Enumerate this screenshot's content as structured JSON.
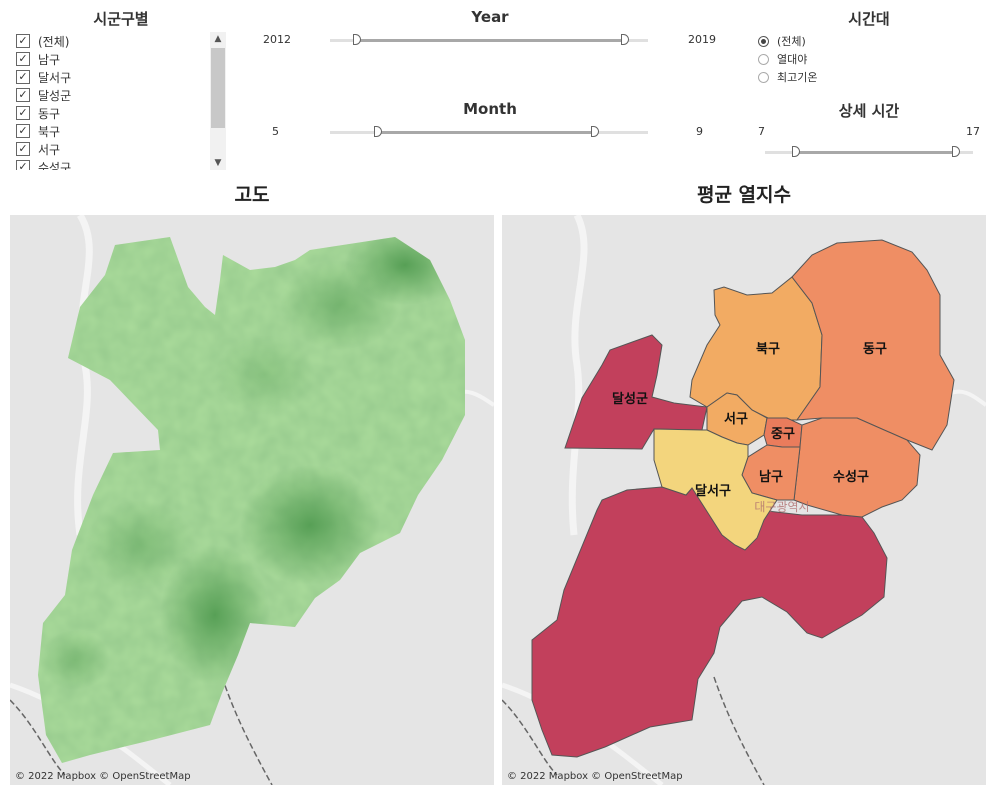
{
  "district_filter": {
    "title": "시군구별",
    "items": [
      {
        "label": "(전체)",
        "checked": true
      },
      {
        "label": "남구",
        "checked": true
      },
      {
        "label": "달서구",
        "checked": true
      },
      {
        "label": "달성군",
        "checked": true
      },
      {
        "label": "동구",
        "checked": true
      },
      {
        "label": "북구",
        "checked": true
      },
      {
        "label": "서구",
        "checked": true
      },
      {
        "label": "수성구",
        "checked": true
      }
    ],
    "scroll_up_icon": "chevron-up-icon",
    "scroll_down_icon": "chevron-down-icon"
  },
  "year_filter": {
    "title": "Year",
    "min": "2012",
    "max": "2019",
    "domain": [
      2012,
      2019
    ],
    "selected": [
      2012,
      2019
    ]
  },
  "month_filter": {
    "title": "Month",
    "min": "5",
    "max": "9",
    "domain": [
      5,
      9
    ],
    "selected": [
      5,
      9
    ]
  },
  "time_filter": {
    "title": "시간대",
    "options": [
      {
        "label": "(전체)",
        "selected": true
      },
      {
        "label": "열대야",
        "selected": false
      },
      {
        "label": "최고기온",
        "selected": false
      }
    ]
  },
  "hour_filter": {
    "title": "상세 시간",
    "min": "7",
    "max": "17",
    "domain": [
      7,
      17
    ],
    "selected": [
      7,
      17
    ]
  },
  "elevation_map": {
    "title": "고도",
    "credit": "© 2022 Mapbox © OpenStreetMap"
  },
  "heat_map": {
    "title": "평균 열지수",
    "credit": "© 2022 Mapbox © OpenStreetMap",
    "city_label": "대구광역시",
    "districts": [
      {
        "name": "달성군",
        "color": "#c2405c"
      },
      {
        "name": "북구",
        "color": "#f2ab63"
      },
      {
        "name": "동구",
        "color": "#ef8e64"
      },
      {
        "name": "서구",
        "color": "#f2ab63"
      },
      {
        "name": "중구",
        "color": "#ea7c5c"
      },
      {
        "name": "남구",
        "color": "#ef8e64"
      },
      {
        "name": "수성구",
        "color": "#ef8e64"
      },
      {
        "name": "달서구",
        "color": "#f3d57d"
      }
    ]
  }
}
